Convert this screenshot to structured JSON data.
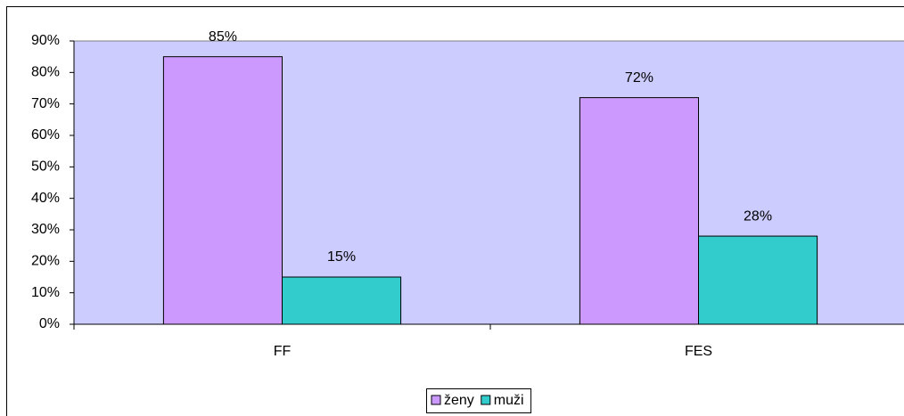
{
  "chart_data": {
    "type": "bar",
    "categories": [
      "FF",
      "FES"
    ],
    "series": [
      {
        "name": "ženy",
        "color": "#cc99ff",
        "values": [
          85,
          72
        ],
        "value_labels": [
          "85%",
          "72%"
        ]
      },
      {
        "name": "muži",
        "color": "#33cccc",
        "values": [
          15,
          28
        ],
        "value_labels": [
          "15%",
          "28%"
        ]
      }
    ],
    "ylim": [
      0,
      90
    ],
    "yticks": [
      {
        "value": 0,
        "label": "0%"
      },
      {
        "value": 10,
        "label": "10%"
      },
      {
        "value": 20,
        "label": "20%"
      },
      {
        "value": 30,
        "label": "30%"
      },
      {
        "value": 40,
        "label": "40%"
      },
      {
        "value": 50,
        "label": "50%"
      },
      {
        "value": 60,
        "label": "60%"
      },
      {
        "value": 70,
        "label": "70%"
      },
      {
        "value": 80,
        "label": "80%"
      },
      {
        "value": 90,
        "label": "90%"
      }
    ],
    "plot_background": "#ccccff",
    "grid": false,
    "legend": "bottom"
  }
}
